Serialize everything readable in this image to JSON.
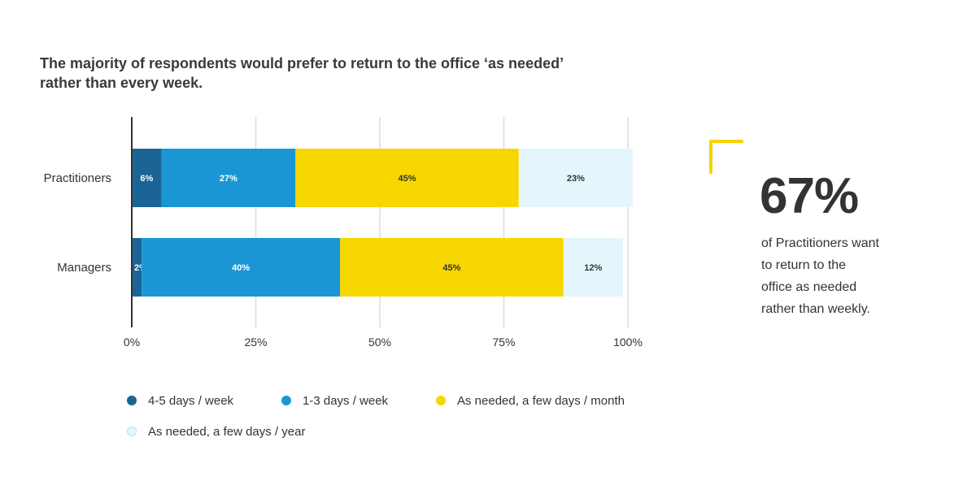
{
  "title": {
    "line1": "The majority of respondents would prefer to return to the office ‘as needed’",
    "line2": "rather than every week."
  },
  "chart_data": {
    "type": "bar",
    "orientation": "horizontal",
    "stacked": true,
    "categories": [
      "Practitioners",
      "Managers"
    ],
    "series": [
      {
        "name": "4-5 days / week",
        "color": "#1a6496",
        "values": [
          6,
          2
        ],
        "labels": [
          "6%",
          "2%"
        ],
        "label_color": "#ffffff"
      },
      {
        "name": "1-3 days / week",
        "color": "#1a96d4",
        "values": [
          27,
          40
        ],
        "labels": [
          "27%",
          "40%"
        ],
        "label_color": "#ffffff"
      },
      {
        "name": "As needed, a few days / month",
        "color": "#f7d700",
        "values": [
          45,
          45
        ],
        "labels": [
          "45%",
          "45%"
        ],
        "label_color": "#333333"
      },
      {
        "name": "As needed, a few days / year",
        "color": "#e4f6fc",
        "values": [
          23,
          12
        ],
        "labels": [
          "23%",
          "12%"
        ],
        "label_color": "#333333"
      }
    ],
    "xlim": [
      0,
      100
    ],
    "x_ticks": [
      0,
      25,
      50,
      75,
      100
    ],
    "x_tick_labels": [
      "0%",
      "25%",
      "50%",
      "75%",
      "100%"
    ],
    "grid": true,
    "legend_position": "bottom"
  },
  "callout": {
    "stat": "67%",
    "lines": [
      "of Practitioners want",
      "to return to the",
      "office as needed",
      "rather than weekly."
    ],
    "accent_color": "#f7d200"
  }
}
